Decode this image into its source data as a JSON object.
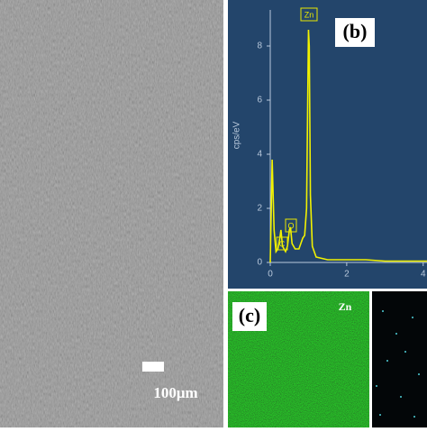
{
  "chart_data": {
    "type": "line",
    "ylabel": "cps/eV",
    "x": [
      0.0,
      0.05,
      0.1,
      0.15,
      0.2,
      0.25,
      0.28,
      0.32,
      0.4,
      0.45,
      0.5,
      0.53,
      0.57,
      0.65,
      0.75,
      0.85,
      0.9,
      0.95,
      1.0,
      1.02,
      1.05,
      1.1,
      1.2,
      1.5,
      2.0,
      2.5,
      3.0,
      3.5,
      4.0,
      4.1
    ],
    "series": [
      {
        "color": "#f2f200",
        "values": [
          0,
          3.8,
          1.2,
          0.4,
          0.5,
          0.9,
          1.2,
          0.6,
          0.4,
          0.6,
          1.2,
          1.3,
          0.7,
          0.5,
          0.5,
          0.9,
          1.0,
          2.0,
          8.6,
          8.0,
          2.5,
          0.6,
          0.2,
          0.1,
          0.1,
          0.1,
          0.05,
          0.05,
          0.05,
          0.05
        ]
      }
    ],
    "annotations": [
      "Zn",
      "O",
      "C"
    ],
    "xlim": [
      0,
      4.1
    ],
    "ylim": [
      0,
      9
    ],
    "xticks": [
      0,
      2,
      4
    ],
    "yticks": [
      0,
      2,
      4,
      6,
      8
    ]
  },
  "panels": {
    "sem_scale": "100μm",
    "spectrum_label": "(b)",
    "map_label": "(c)",
    "map_element": "Zn"
  }
}
